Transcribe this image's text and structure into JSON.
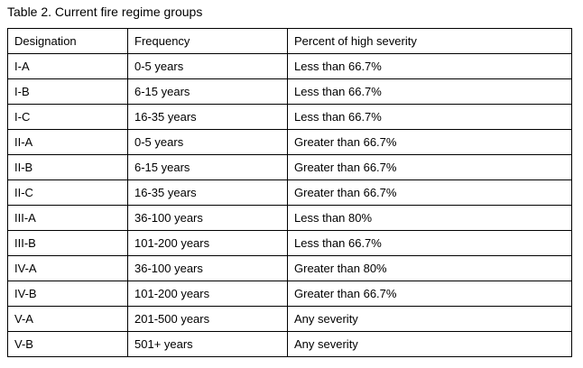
{
  "title": "Table 2. Current fire regime groups",
  "table": {
    "columns": [
      "Designation",
      "Frequency",
      "Percent of high severity"
    ],
    "rows": [
      [
        "I-A",
        "0-5 years",
        "Less than 66.7%"
      ],
      [
        "I-B",
        "6-15 years",
        "Less than 66.7%"
      ],
      [
        "I-C",
        "16-35 years",
        "Less than 66.7%"
      ],
      [
        "II-A",
        "0-5 years",
        "Greater than 66.7%"
      ],
      [
        "II-B",
        "6-15 years",
        "Greater than 66.7%"
      ],
      [
        "II-C",
        "16-35 years",
        "Greater than 66.7%"
      ],
      [
        "III-A",
        "36-100 years",
        "Less than 80%"
      ],
      [
        "III-B",
        "101-200 years",
        "Less than 66.7%"
      ],
      [
        "IV-A",
        "36-100 years",
        "Greater than 80%"
      ],
      [
        "IV-B",
        "101-200 years",
        "Greater than 66.7%"
      ],
      [
        "V-A",
        "201-500 years",
        "Any severity"
      ],
      [
        "V-B",
        "501+ years",
        "Any severity"
      ]
    ]
  }
}
